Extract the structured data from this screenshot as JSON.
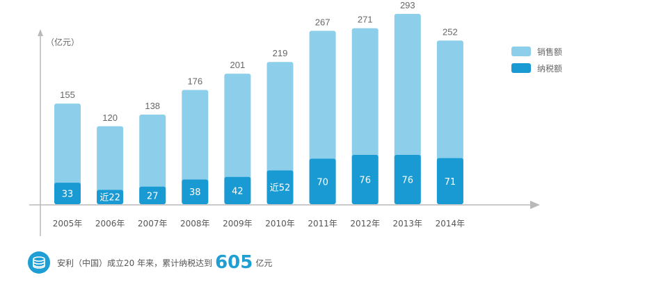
{
  "chart_data": {
    "type": "bar",
    "unit_label": "（亿元）",
    "categories": [
      "2005年",
      "2006年",
      "2007年",
      "2008年",
      "2009年",
      "2010年",
      "2011年",
      "2012年",
      "2013年",
      "2014年"
    ],
    "series": [
      {
        "name": "销售额",
        "color": "#8dcfeb",
        "values": [
          155,
          120,
          138,
          176,
          201,
          219,
          267,
          271,
          293,
          252
        ],
        "labels": [
          "155",
          "120",
          "138",
          "176",
          "201",
          "219",
          "267",
          "271",
          "293",
          "252"
        ]
      },
      {
        "name": "纳税额",
        "color": "#1a9ad3",
        "values": [
          33,
          22,
          27,
          38,
          42,
          52,
          70,
          76,
          76,
          71
        ],
        "labels": [
          "33",
          "近22",
          "27",
          "38",
          "42",
          "近52",
          "70",
          "76",
          "76",
          "71"
        ]
      }
    ],
    "ylim": [
      0,
      320
    ]
  },
  "footnote": {
    "prefix": "安利（中国）成立20 年来，累计纳税达到",
    "number": "605",
    "suffix": "亿元",
    "icon": "coins-icon"
  }
}
